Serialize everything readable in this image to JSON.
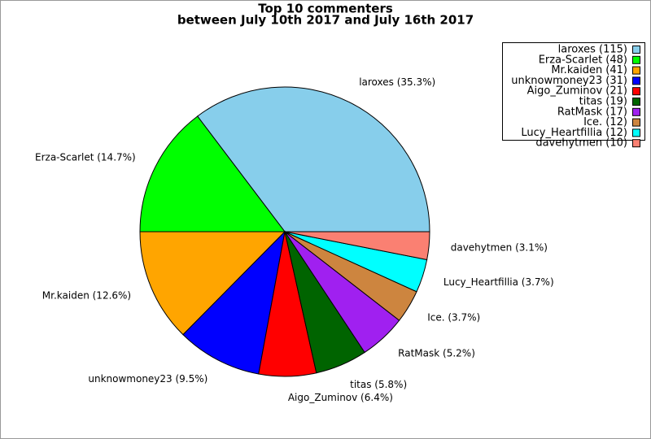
{
  "chart_data": {
    "type": "pie",
    "title": "Top 10 commenters",
    "subtitle": "between July 10th 2017 and July 16th 2017",
    "categories": [
      "laroxes",
      "Erza-Scarlet",
      "Mr.kaiden",
      "unknowmoney23",
      "Aigo_Zuminov",
      "titas",
      "RatMask",
      "Ice.",
      "Lucy_Heartfillia",
      "davehytmen"
    ],
    "values": [
      35.3,
      14.7,
      12.6,
      9.5,
      6.4,
      5.8,
      5.2,
      3.7,
      3.7,
      3.1
    ],
    "value_labels": [
      "laroxes (35.3%)",
      "Erza-Scarlet (14.7%)",
      "Mr.kaiden (12.6%)",
      "unknowmoney23 (9.5%)",
      "Aigo_Zuminov (6.4%)",
      "titas (5.8%)",
      "RatMask (5.2%)",
      "Ice. (3.7%)",
      "Lucy_Heartfillia (3.7%)",
      "davehytmen (3.1%)"
    ],
    "legend_labels": [
      "laroxes (115)",
      "Erza-Scarlet (48)",
      "Mr.kaiden (41)",
      "unknowmoney23 (31)",
      "Aigo_Zuminov (21)",
      "titas (19)",
      "RatMask (17)",
      "Ice. (12)",
      "Lucy_Heartfillia (12)",
      "davehytmen (10)"
    ],
    "colors": [
      "#87ceeb",
      "#00ff00",
      "#ffa500",
      "#0000ff",
      "#ff0000",
      "#006400",
      "#a020f0",
      "#cd853f",
      "#00ffff",
      "#fa8072"
    ],
    "legend": "upper right"
  }
}
